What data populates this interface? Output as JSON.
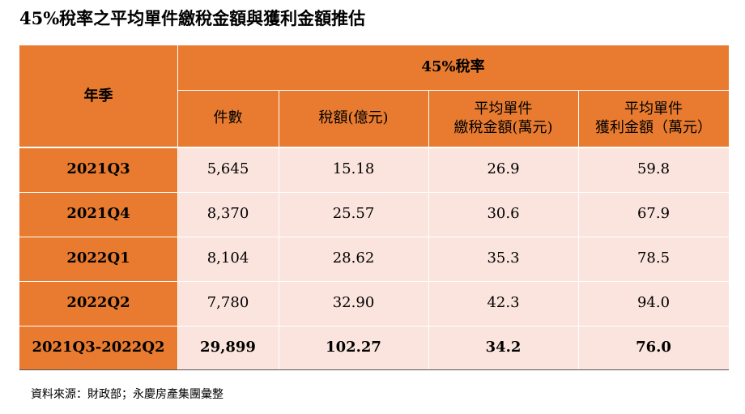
{
  "title": "45%稅率之平均單件繳稅金額與獲利金額推估",
  "table": {
    "row_header": "年季",
    "group_header": "45%稅率",
    "columns": [
      "件數",
      "稅額(億元)",
      "平均單件\n繳稅金額(萬元)",
      "平均單件\n獲利金額（萬元）"
    ],
    "rows": [
      {
        "period": "2021Q3",
        "count": "5,645",
        "tax": "15.18",
        "avg_tax": "26.9",
        "avg_profit": "59.8"
      },
      {
        "period": "2021Q4",
        "count": "8,370",
        "tax": "25.57",
        "avg_tax": "30.6",
        "avg_profit": "67.9"
      },
      {
        "period": "2022Q1",
        "count": "8,104",
        "tax": "28.62",
        "avg_tax": "35.3",
        "avg_profit": "78.5"
      },
      {
        "period": "2022Q2",
        "count": "7,780",
        "tax": "32.90",
        "avg_tax": "42.3",
        "avg_profit": "94.0"
      }
    ],
    "total": {
      "period": "2021Q3-2022Q2",
      "count": "29,899",
      "tax": "102.27",
      "avg_tax": "34.2",
      "avg_profit": "76.0"
    }
  },
  "source_note": "資料來源：財政部；永慶房產集團彙整",
  "colors": {
    "header_bg": "#e87b2f",
    "data_bg": "#fbe4dd"
  }
}
